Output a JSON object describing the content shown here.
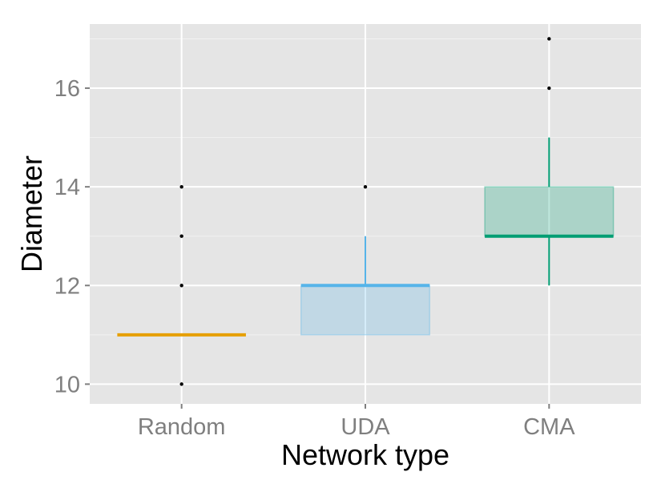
{
  "chart_data": {
    "type": "boxplot",
    "title": "",
    "xlabel": "Network type",
    "ylabel": "Diameter",
    "categories": [
      "Random",
      "UDA",
      "CMA"
    ],
    "ylim": [
      9.6,
      17.3
    ],
    "y_ticks": [
      10,
      12,
      14,
      16
    ],
    "y_tick_labels": [
      "10",
      "12",
      "14",
      "16"
    ],
    "grid": true,
    "legend": "none",
    "colors": {
      "panel": "#e5e5e5",
      "grid_major": "#ffffff",
      "grid_minor": "#f2f2f2",
      "Random": "#e69f00",
      "UDA": "#56b4e9",
      "CMA": "#009e73"
    },
    "boxes": [
      {
        "category": "Random",
        "q1": 11,
        "median": 11,
        "q3": 11,
        "whisker_low": 11,
        "whisker_high": 11,
        "outliers": [
          10,
          12,
          13,
          14
        ]
      },
      {
        "category": "UDA",
        "q1": 11,
        "median": 12,
        "q3": 12,
        "whisker_low": 11,
        "whisker_high": 13,
        "outliers": [
          14
        ]
      },
      {
        "category": "CMA",
        "q1": 13,
        "median": 13,
        "q3": 14,
        "whisker_low": 12,
        "whisker_high": 15,
        "outliers": [
          16,
          17
        ]
      }
    ]
  }
}
